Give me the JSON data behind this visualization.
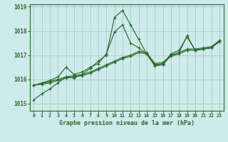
{
  "title": "Graphe pression niveau de la mer (hPa)",
  "bg_color": "#ceeaea",
  "grid_color": "#a8d0d0",
  "line_color": "#2d6a2d",
  "xlim": [
    -0.5,
    23.5
  ],
  "ylim": [
    1014.7,
    1019.1
  ],
  "xtick_labels": [
    "0",
    "1",
    "2",
    "3",
    "4",
    "5",
    "6",
    "7",
    "8",
    "9",
    "10",
    "11",
    "12",
    "13",
    "14",
    "15",
    "16",
    "17",
    "18",
    "19",
    "20",
    "21",
    "22",
    "23"
  ],
  "ytick_values": [
    1015,
    1016,
    1017,
    1018,
    1019
  ],
  "series": [
    [
      1015.15,
      1015.4,
      1015.6,
      1015.85,
      1016.1,
      1016.05,
      1016.2,
      1016.45,
      1016.75,
      1017.0,
      1018.55,
      1018.85,
      1018.25,
      1017.65,
      1017.05,
      1016.55,
      1016.6,
      1017.0,
      1017.1,
      1017.8,
      1017.2,
      1017.25,
      1017.3,
      1017.6
    ],
    [
      1015.75,
      1015.85,
      1015.95,
      1016.1,
      1016.5,
      1016.2,
      1016.3,
      1016.5,
      1016.65,
      1017.05,
      1017.95,
      1018.25,
      1017.5,
      1017.3,
      1017.05,
      1016.6,
      1016.6,
      1017.05,
      1017.2,
      1017.75,
      1017.2,
      1017.25,
      1017.3,
      1017.6
    ],
    [
      1015.75,
      1015.8,
      1015.85,
      1015.95,
      1016.05,
      1016.1,
      1016.15,
      1016.25,
      1016.4,
      1016.55,
      1016.7,
      1016.85,
      1016.95,
      1017.1,
      1017.05,
      1016.6,
      1016.65,
      1016.95,
      1017.05,
      1017.2,
      1017.2,
      1017.25,
      1017.3,
      1017.55
    ],
    [
      1015.75,
      1015.82,
      1015.9,
      1016.0,
      1016.1,
      1016.15,
      1016.2,
      1016.3,
      1016.45,
      1016.6,
      1016.75,
      1016.9,
      1017.0,
      1017.15,
      1017.1,
      1016.65,
      1016.7,
      1017.0,
      1017.1,
      1017.25,
      1017.25,
      1017.3,
      1017.35,
      1017.6
    ]
  ]
}
